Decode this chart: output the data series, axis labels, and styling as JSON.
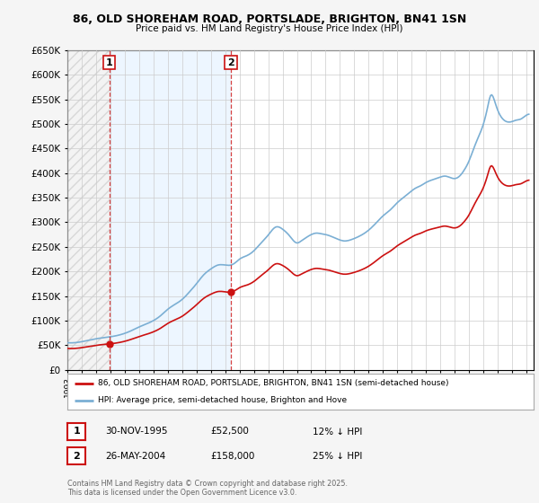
{
  "title1": "86, OLD SHOREHAM ROAD, PORTSLADE, BRIGHTON, BN41 1SN",
  "title2": "Price paid vs. HM Land Registry's House Price Index (HPI)",
  "legend1": "86, OLD SHOREHAM ROAD, PORTSLADE, BRIGHTON, BN41 1SN (semi-detached house)",
  "legend2": "HPI: Average price, semi-detached house, Brighton and Hove",
  "sale1_date": "30-NOV-1995",
  "sale1_price": "£52,500",
  "sale1_hpi": "12% ↓ HPI",
  "sale1_year": 1995.917,
  "sale1_value": 52500,
  "sale2_date": "26-MAY-2004",
  "sale2_price": "£158,000",
  "sale2_hpi": "25% ↓ HPI",
  "sale2_year": 2004.4,
  "sale2_value": 158000,
  "copyright": "Contains HM Land Registry data © Crown copyright and database right 2025.\nThis data is licensed under the Open Government Licence v3.0.",
  "ylim": [
    0,
    650000
  ],
  "yticks": [
    0,
    50000,
    100000,
    150000,
    200000,
    250000,
    300000,
    350000,
    400000,
    450000,
    500000,
    550000,
    600000,
    650000
  ],
  "bg_color": "#f5f5f5",
  "plot_bg": "#ffffff",
  "red_color": "#cc1111",
  "hpi_line_color": "#7bafd4",
  "hatch_color": "#e8e8e8",
  "shade_color": "#ddeeff"
}
